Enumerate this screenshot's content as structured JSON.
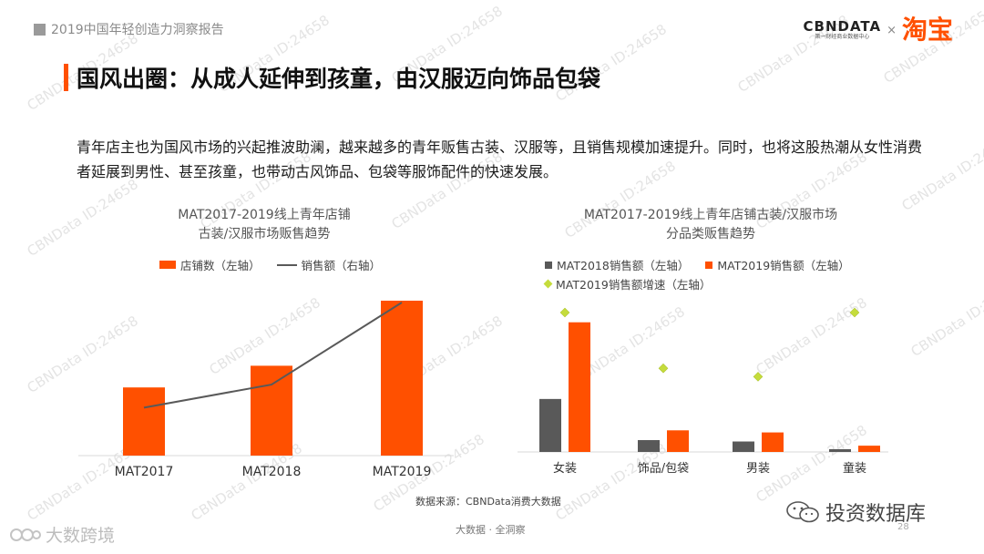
{
  "header": {
    "report_tag": "2019中国年轻创造力洞察报告",
    "brand_cbn": "CBNDATA",
    "brand_cbn_sub": "第一财经商业数据中心",
    "brand_x": "×",
    "brand_taobao": "淘宝"
  },
  "title": "国风出圈：从成人延伸到孩童，由汉服迈向饰品包袋",
  "description": "青年店主也为国风市场的兴起推波助澜，越来越多的青年贩售古装、汉服等，且销售规模加速提升。同时，也将这股热潮从女性消费者延展到男性、甚至孩童，也带动古风饰品、包袋等服饰配件的快速发展。",
  "watermark_text": "CBNData ID:24658",
  "colors": {
    "accent": "#ff5000",
    "dark_bar": "#595959",
    "line": "#595959",
    "diamond": "#c5dc3c"
  },
  "chart_data": [
    {
      "type": "bar",
      "title_line1": "MAT2017-2019线上青年店铺",
      "title_line2": "古装/汉服市场贩售趋势",
      "categories": [
        "MAT2017",
        "MAT2018",
        "MAT2019"
      ],
      "series": [
        {
          "name": "店铺数（左轴）",
          "type": "bar",
          "values": [
            0.44,
            0.58,
            1.0
          ]
        },
        {
          "name": "销售额（右轴）",
          "type": "line",
          "values": [
            0.27,
            0.43,
            1.0
          ]
        }
      ],
      "ylim": [
        0,
        1
      ]
    },
    {
      "type": "bar",
      "title_line1": "MAT2017-2019线上青年店铺古装/汉服市场",
      "title_line2": "分品类贩售趋势",
      "categories": [
        "女装",
        "饰品/包袋",
        "男装",
        "童装"
      ],
      "series": [
        {
          "name": "MAT2018销售额（左轴）",
          "type": "bar",
          "values": [
            0.38,
            0.085,
            0.075,
            0.02
          ]
        },
        {
          "name": "MAT2019销售额（左轴）",
          "type": "bar",
          "values": [
            0.93,
            0.155,
            0.14,
            0.045
          ]
        },
        {
          "name": "MAT2019销售额增速（左轴）",
          "type": "scatter",
          "values": [
            1.0,
            0.6,
            0.54,
            1.0
          ]
        }
      ],
      "ylim": [
        0,
        1
      ]
    }
  ],
  "source": "数据来源：CBNData消费大数据",
  "footer": "大数据 · 全洞察",
  "page_number": "28",
  "watermark_left": "大数跨境",
  "watermark_right": "投资数据库"
}
